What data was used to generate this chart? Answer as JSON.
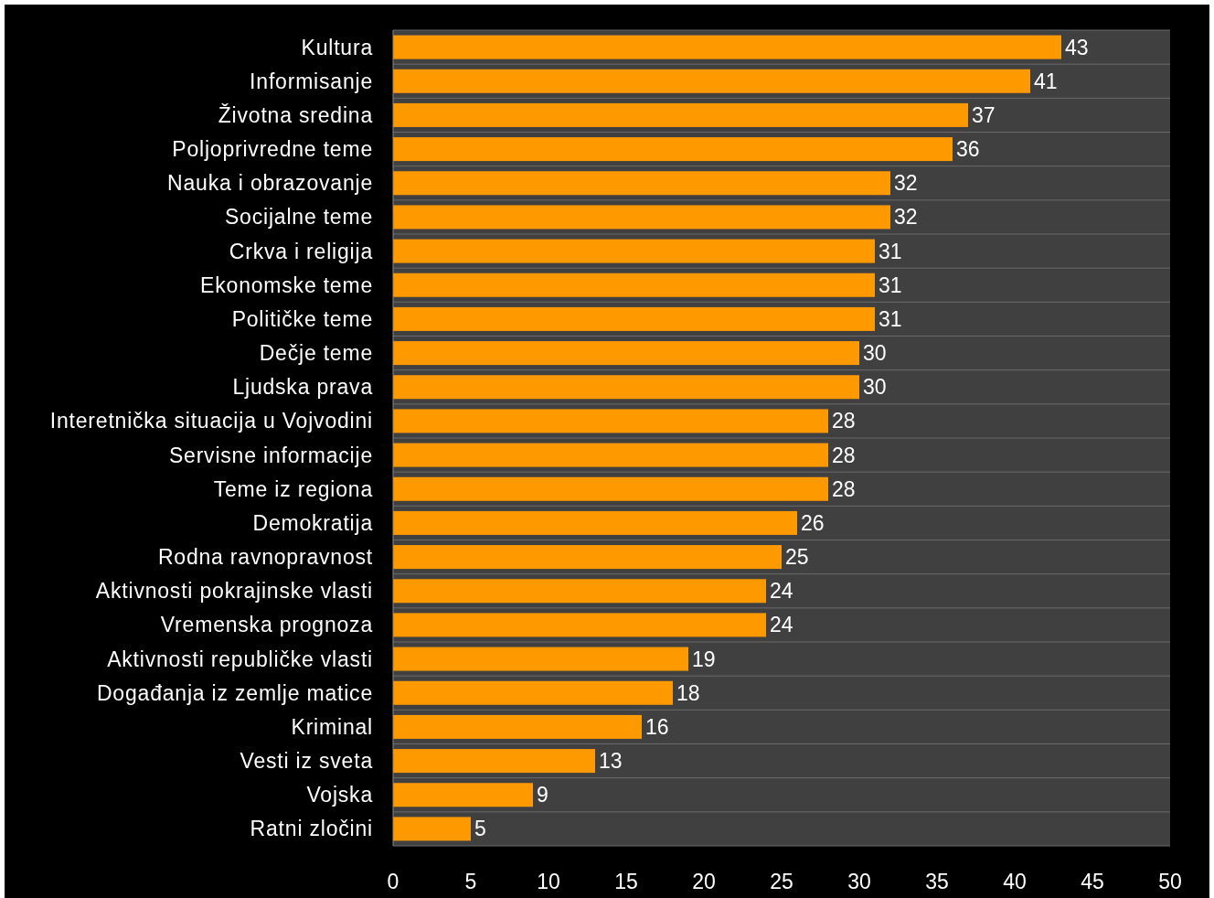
{
  "chart_data": {
    "type": "bar",
    "orientation": "horizontal",
    "categories": [
      "Kultura",
      "Informisanje",
      "Životna sredina",
      "Poljoprivredne teme",
      "Nauka i obrazovanje",
      "Socijalne teme",
      "Crkva i religija",
      "Ekonomske teme",
      "Političke teme",
      "Dečje teme",
      "Ljudska prava",
      "Interetnička situacija u Vojvodini",
      "Servisne informacije",
      "Teme iz regiona",
      "Demokratija",
      "Rodna ravnopravnost",
      "Aktivnosti pokrajinske vlasti",
      "Vremenska prognoza",
      "Aktivnosti republičke vlasti",
      "Događanja iz zemlje matice",
      "Kriminal",
      "Vesti iz sveta",
      "Vojska",
      "Ratni zločini"
    ],
    "values": [
      43,
      41,
      37,
      36,
      32,
      32,
      31,
      31,
      31,
      30,
      30,
      28,
      28,
      28,
      26,
      25,
      24,
      24,
      19,
      18,
      16,
      13,
      9,
      5
    ],
    "color": "#ff9900",
    "xlim": [
      0,
      50
    ],
    "xticks": [
      0,
      5,
      10,
      15,
      20,
      25,
      30,
      35,
      40,
      45,
      50
    ],
    "grid": "y",
    "data_labels": true
  }
}
